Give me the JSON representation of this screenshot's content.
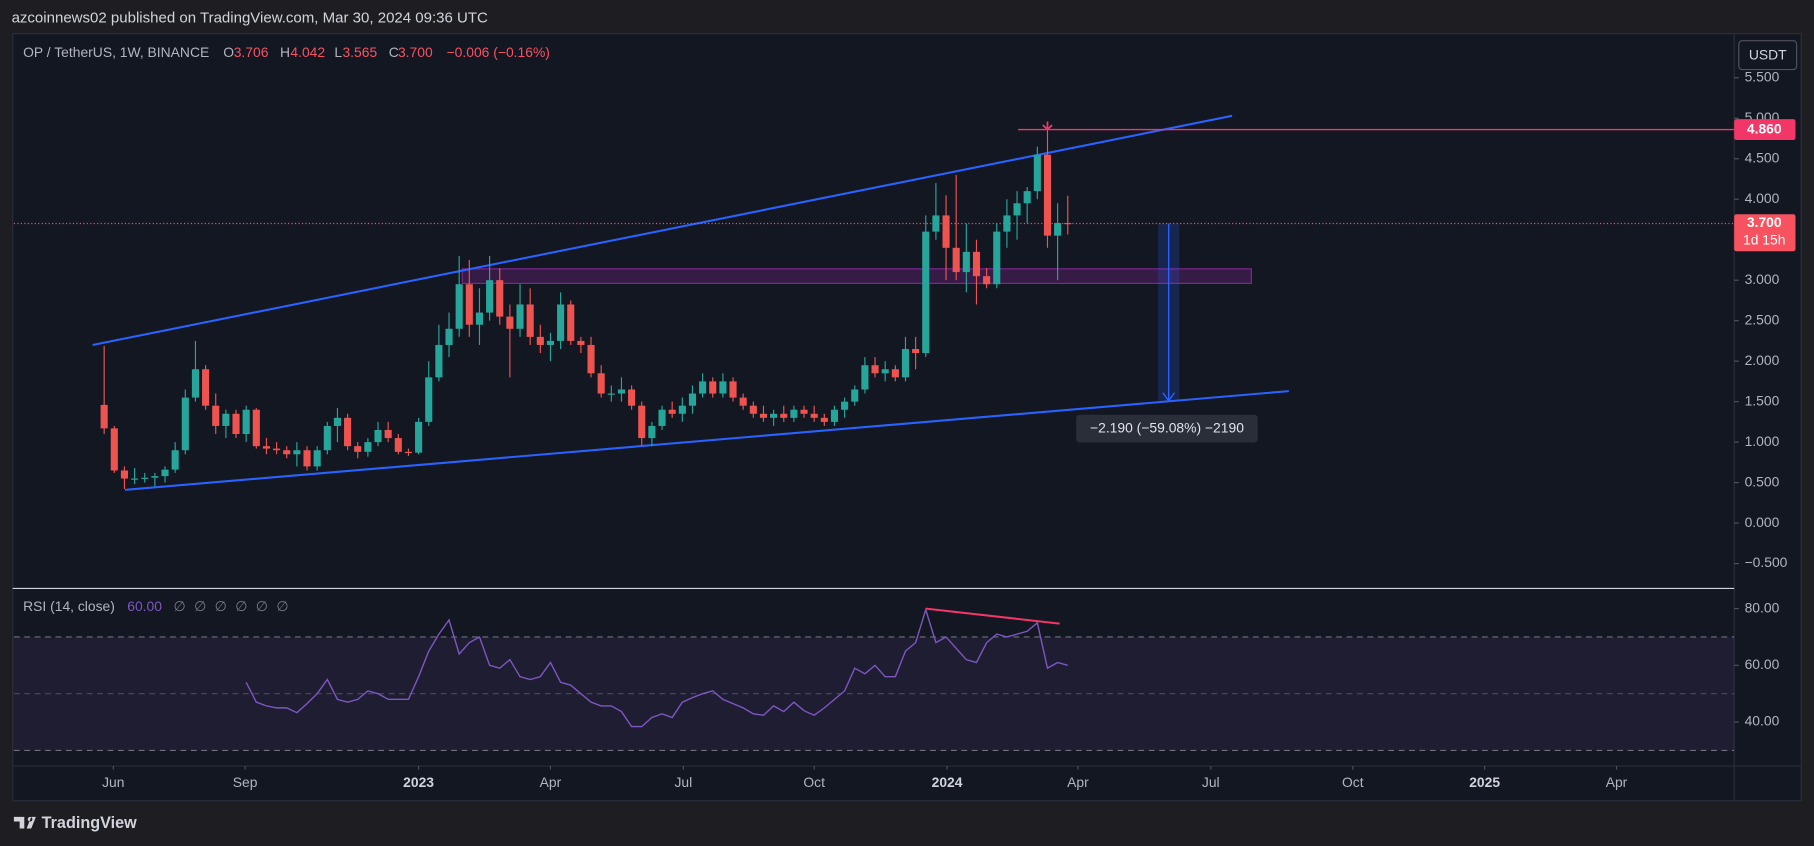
{
  "header": {
    "published": "azcoinnews02 published on TradingView.com, Mar 30, 2024 09:36 UTC",
    "currency": "USDT",
    "footer_brand": "TradingView"
  },
  "chart_data": {
    "type": "candlestick",
    "legend": {
      "symbol": "OP / TetherUS, 1W, BINANCE",
      "o": "O",
      "open": "3.706",
      "h": "H",
      "high": "4.042",
      "l": "L",
      "low": "3.565",
      "c": "C",
      "close": "3.700",
      "change": "−0.006 (−0.16%)"
    },
    "up_color": "#26a69a",
    "down_color": "#ef5350",
    "open": [
      1.46,
      1.17,
      0.65,
      0.55,
      0.55,
      0.56,
      0.58,
      0.66,
      0.9,
      1.55,
      1.9,
      1.45,
      1.2,
      1.35,
      1.1,
      1.4,
      0.95,
      0.92,
      0.9,
      0.85,
      0.9,
      0.7,
      0.9,
      1.2,
      1.3,
      0.95,
      0.88,
      1.0,
      1.15,
      1.05,
      0.88,
      0.87,
      1.25,
      1.8,
      2.2,
      2.4,
      2.95,
      2.45,
      2.6,
      3.0,
      2.55,
      2.4,
      2.7,
      2.3,
      2.2,
      2.25,
      2.7,
      2.25,
      2.2,
      1.85,
      1.6,
      1.6,
      1.65,
      1.45,
      1.05,
      1.2,
      1.4,
      1.35,
      1.45,
      1.6,
      1.75,
      1.6,
      1.75,
      1.55,
      1.45,
      1.35,
      1.3,
      1.35,
      1.3,
      1.4,
      1.35,
      1.3,
      1.25,
      1.4,
      1.5,
      1.65,
      1.95,
      1.85,
      1.9,
      1.8,
      2.15,
      2.1,
      3.6,
      3.8,
      3.4,
      3.1,
      3.35,
      3.05,
      2.95,
      3.6,
      3.8,
      3.95,
      4.1,
      4.55,
      3.55,
      3.706
    ],
    "high": [
      2.19,
      1.2,
      0.7,
      0.68,
      0.62,
      0.62,
      0.7,
      1.0,
      1.65,
      2.25,
      1.95,
      1.6,
      1.4,
      1.4,
      1.45,
      1.42,
      1.05,
      1.0,
      0.95,
      1.0,
      0.95,
      0.95,
      1.25,
      1.42,
      1.35,
      1.0,
      1.05,
      1.25,
      1.25,
      1.1,
      0.92,
      1.3,
      2.0,
      2.45,
      2.6,
      3.3,
      3.25,
      2.9,
      3.3,
      3.15,
      2.7,
      2.95,
      2.9,
      2.45,
      2.35,
      2.85,
      2.75,
      2.3,
      2.3,
      1.95,
      1.7,
      1.8,
      1.7,
      1.5,
      1.25,
      1.45,
      1.5,
      1.55,
      1.7,
      1.85,
      1.8,
      1.85,
      1.8,
      1.6,
      1.5,
      1.45,
      1.4,
      1.45,
      1.45,
      1.45,
      1.45,
      1.35,
      1.45,
      1.55,
      1.7,
      2.05,
      2.05,
      2.0,
      1.95,
      2.3,
      2.3,
      3.8,
      4.2,
      4.05,
      4.3,
      3.7,
      3.5,
      3.15,
      3.7,
      4.0,
      4.1,
      4.15,
      4.65,
      4.86,
      3.95,
      4.042
    ],
    "low": [
      1.1,
      0.62,
      0.42,
      0.48,
      0.5,
      0.45,
      0.5,
      0.62,
      0.85,
      1.5,
      1.4,
      1.1,
      1.05,
      1.05,
      1.0,
      0.92,
      0.85,
      0.85,
      0.8,
      0.7,
      0.65,
      0.65,
      0.85,
      1.0,
      0.9,
      0.8,
      0.82,
      0.95,
      1.0,
      0.85,
      0.83,
      0.85,
      1.2,
      1.75,
      2.05,
      2.3,
      2.3,
      2.2,
      2.5,
      2.45,
      1.8,
      2.3,
      2.2,
      2.1,
      2.0,
      2.15,
      2.2,
      2.1,
      1.8,
      1.55,
      1.5,
      1.5,
      1.4,
      0.96,
      0.95,
      1.15,
      1.3,
      1.25,
      1.35,
      1.55,
      1.55,
      1.55,
      1.5,
      1.4,
      1.3,
      1.25,
      1.2,
      1.25,
      1.25,
      1.3,
      1.25,
      1.2,
      1.2,
      1.3,
      1.45,
      1.6,
      1.8,
      1.75,
      1.75,
      1.75,
      1.9,
      2.05,
      3.5,
      3.0,
      3.0,
      2.85,
      2.7,
      2.9,
      2.9,
      3.4,
      3.5,
      3.7,
      4.0,
      3.4,
      3.0,
      3.565
    ],
    "close": [
      1.17,
      0.65,
      0.55,
      0.55,
      0.56,
      0.58,
      0.66,
      0.9,
      1.55,
      1.9,
      1.45,
      1.2,
      1.35,
      1.1,
      1.4,
      0.95,
      0.92,
      0.9,
      0.85,
      0.9,
      0.7,
      0.9,
      1.2,
      1.3,
      0.95,
      0.88,
      1.0,
      1.15,
      1.05,
      0.88,
      0.87,
      1.25,
      1.8,
      2.2,
      2.4,
      2.95,
      2.45,
      2.6,
      3.0,
      2.55,
      2.4,
      2.7,
      2.3,
      2.2,
      2.25,
      2.7,
      2.25,
      2.2,
      1.85,
      1.6,
      1.6,
      1.65,
      1.45,
      1.05,
      1.2,
      1.4,
      1.35,
      1.45,
      1.6,
      1.75,
      1.6,
      1.75,
      1.55,
      1.45,
      1.35,
      1.3,
      1.35,
      1.3,
      1.4,
      1.35,
      1.3,
      1.25,
      1.4,
      1.5,
      1.65,
      1.95,
      1.85,
      1.9,
      1.8,
      2.15,
      2.1,
      3.6,
      3.8,
      3.4,
      3.1,
      3.35,
      3.05,
      2.95,
      3.6,
      3.8,
      3.95,
      4.1,
      4.55,
      3.55,
      3.706,
      3.7
    ],
    "xlim": [
      -8.9,
      160.7
    ],
    "xticks": [
      {
        "value": 0.9,
        "label": "Jun"
      },
      {
        "value": 13.9,
        "label": "Sep"
      },
      {
        "value": 31,
        "label": "2023"
      },
      {
        "value": 44,
        "label": "Apr"
      },
      {
        "value": 57.1,
        "label": "Jul"
      },
      {
        "value": 70,
        "label": "Oct"
      },
      {
        "value": 83.1,
        "label": "2024"
      },
      {
        "value": 96,
        "label": "Apr"
      },
      {
        "value": 109.1,
        "label": "Jul"
      },
      {
        "value": 123.1,
        "label": "Oct"
      },
      {
        "value": 136.1,
        "label": "2025"
      },
      {
        "value": 149.1,
        "label": "Apr"
      }
    ],
    "ylim": [
      -0.8,
      6.03
    ],
    "yticks": [
      {
        "value": -0.5,
        "label": "−0.500"
      },
      {
        "value": 0,
        "label": "0.000"
      },
      {
        "value": 0.5,
        "label": "0.500"
      },
      {
        "value": 1,
        "label": "1.000"
      },
      {
        "value": 1.5,
        "label": "1.500"
      },
      {
        "value": 2,
        "label": "2.000"
      },
      {
        "value": 2.5,
        "label": "2.500"
      },
      {
        "value": 3,
        "label": "3.000"
      },
      {
        "value": 3.5,
        "label": "3.500"
      },
      {
        "value": 4,
        "label": "4.000"
      },
      {
        "value": 4.5,
        "label": "4.500"
      },
      {
        "value": 5,
        "label": "5.000"
      },
      {
        "value": 5.5,
        "label": "5.500"
      }
    ],
    "last_price_label": "3.700",
    "countdown": "1d 15h",
    "drawings": {
      "channel_upper": {
        "x": [
          -1.14,
          111.2
        ],
        "y": [
          2.2,
          5.03
        ],
        "color": "#2962ff"
      },
      "channel_lower": {
        "x": [
          2.05,
          116.8
        ],
        "y": [
          0.41,
          1.63
        ],
        "color": "#2962ff"
      },
      "zone": {
        "x": [
          35.3,
          113.1
        ],
        "y": [
          2.96,
          3.14
        ],
        "color": "#9c27b0"
      },
      "resistance": {
        "x": 90.1,
        "y": 4.86,
        "label": "4.860",
        "color": "#f23668"
      },
      "measure": {
        "x": [
          103.9,
          106.0
        ],
        "from": 3.7,
        "to": 1.51,
        "label": "−2.190 (−59.08%) −2190"
      }
    },
    "rsi": {
      "title": "RSI (14, close)",
      "value_label": "60.00",
      "inputs": "∅ ∅ ∅ ∅ ∅ ∅",
      "color": "#7e57c2",
      "values": [
        null,
        null,
        null,
        null,
        null,
        null,
        null,
        null,
        null,
        null,
        null,
        null,
        null,
        null,
        54,
        47,
        45.7,
        45,
        45,
        43.3,
        46.5,
        50,
        55,
        48,
        47,
        48,
        51,
        50,
        48,
        48,
        48,
        56,
        65,
        71,
        76,
        64,
        68,
        70,
        60,
        59,
        62,
        56,
        55,
        56,
        61,
        54,
        53,
        50,
        47,
        45.7,
        45.7,
        43.7,
        38.4,
        38.4,
        41.6,
        42.9,
        41.6,
        47,
        48.6,
        50,
        51,
        48,
        46.5,
        45,
        42.9,
        42.4,
        45.7,
        43.7,
        47,
        44,
        42.4,
        45,
        48,
        51,
        59,
        57,
        60,
        56,
        56,
        65,
        68,
        79.6,
        68,
        70,
        66,
        62,
        61,
        68,
        71,
        70,
        71,
        72,
        75,
        59,
        61,
        60
      ],
      "ylim": [
        24.5,
        86.5
      ],
      "yticks": [
        {
          "value": 40,
          "label": "40.00"
        },
        {
          "value": 60,
          "label": "60.00"
        },
        {
          "value": 80,
          "label": "80.00"
        }
      ],
      "bands": [
        30,
        50,
        70
      ],
      "divergence": {
        "x": [
          81,
          94.2
        ],
        "y": [
          80,
          74.7
        ],
        "color": "#f23668"
      }
    }
  }
}
